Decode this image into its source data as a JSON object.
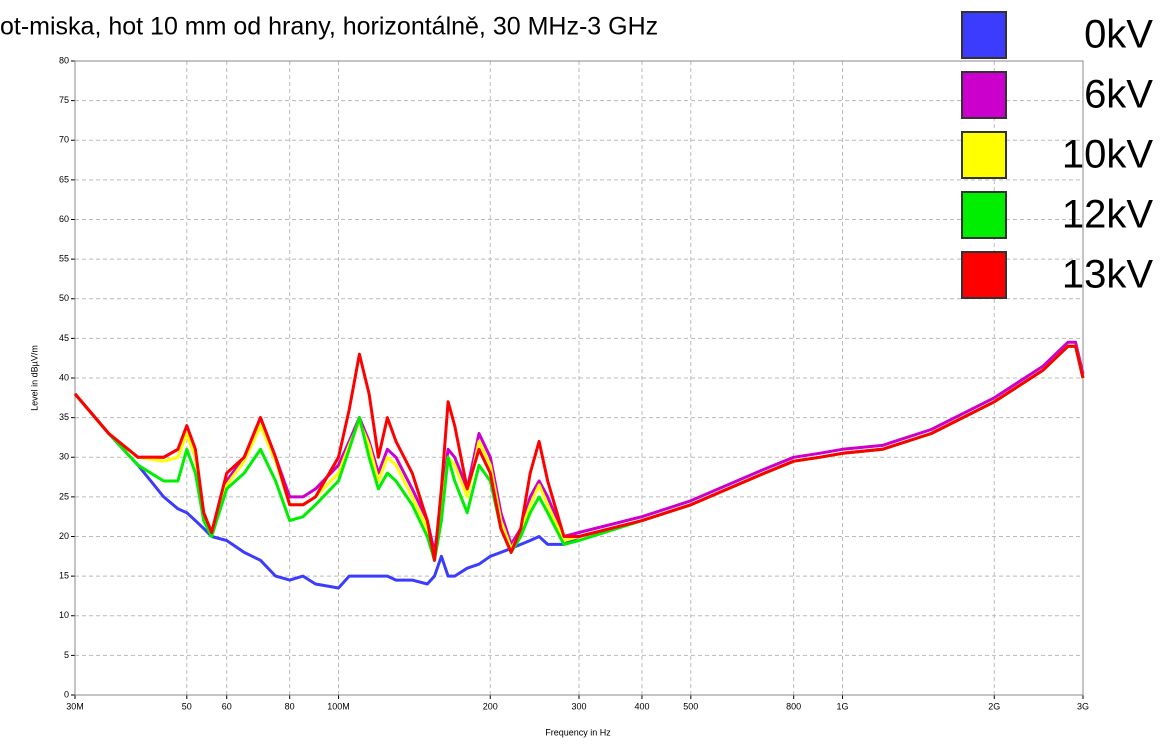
{
  "chart_data": {
    "type": "line",
    "title": "ot-miska, hot 10 mm od hrany, horizontálně, 30 MHz-3 GHz",
    "x_label": "Frequency in Hz",
    "y_label": "Level in dBµV/m",
    "x_scale": "log",
    "grid": true,
    "legend": "top-right",
    "xlim": [
      30000000,
      3000000000
    ],
    "ylim": [
      0,
      80
    ],
    "yticks": [
      0,
      5,
      10,
      15,
      20,
      25,
      30,
      35,
      40,
      45,
      50,
      55,
      60,
      65,
      70,
      75,
      80
    ],
    "xticks": [
      {
        "value": 30000000,
        "label": "30M"
      },
      {
        "value": 50000000,
        "label": "50"
      },
      {
        "value": 60000000,
        "label": "60"
      },
      {
        "value": 80000000,
        "label": "80"
      },
      {
        "value": 100000000,
        "label": "100M"
      },
      {
        "value": 200000000,
        "label": "200"
      },
      {
        "value": 300000000,
        "label": "300"
      },
      {
        "value": 400000000,
        "label": "400"
      },
      {
        "value": 500000000,
        "label": "500"
      },
      {
        "value": 800000000,
        "label": "800"
      },
      {
        "value": 1000000000,
        "label": "1G"
      },
      {
        "value": 2000000000,
        "label": "2G"
      },
      {
        "value": 3000000000,
        "label": "3G"
      }
    ],
    "x": [
      30000000,
      35000000,
      40000000,
      45000000,
      48000000,
      50000000,
      52000000,
      54000000,
      56000000,
      60000000,
      65000000,
      70000000,
      75000000,
      80000000,
      85000000,
      90000000,
      100000000,
      105000000,
      110000000,
      115000000,
      120000000,
      125000000,
      130000000,
      140000000,
      150000000,
      155000000,
      160000000,
      165000000,
      170000000,
      180000000,
      190000000,
      200000000,
      210000000,
      220000000,
      230000000,
      240000000,
      250000000,
      260000000,
      280000000,
      300000000,
      400000000,
      500000000,
      700000000,
      800000000,
      900000000,
      1000000000,
      1200000000,
      1500000000,
      2000000000,
      2500000000,
      2800000000,
      2900000000,
      3000000000
    ],
    "series": [
      {
        "name": "0kV",
        "color": "#3c3cff",
        "values": [
          38,
          33,
          29,
          25,
          23.5,
          23,
          22,
          21,
          20,
          19.5,
          18,
          17,
          15,
          14.5,
          15,
          14,
          13.5,
          15,
          15,
          15,
          15,
          15,
          14.5,
          14.5,
          14,
          15,
          17.5,
          15,
          15,
          16,
          16.5,
          17.5,
          18,
          18.5,
          19,
          19.5,
          20,
          19,
          19,
          20,
          22,
          24,
          28,
          29.5,
          30,
          30.5,
          31,
          33,
          37,
          41,
          44,
          44,
          40
        ]
      },
      {
        "name": "6kV",
        "color": "#cc00cc",
        "values": [
          38,
          33,
          30,
          30,
          31,
          33,
          30,
          23,
          20.5,
          27,
          30,
          35,
          30,
          25,
          25,
          26,
          29,
          32,
          35,
          32,
          28,
          31,
          30,
          26,
          22,
          18,
          24,
          31,
          30,
          26,
          33,
          30,
          23,
          19,
          21,
          25,
          27,
          25,
          20,
          20.5,
          22.5,
          24.5,
          28.5,
          30,
          30.5,
          31,
          31.5,
          33.5,
          37.5,
          41.5,
          44.5,
          44.5,
          40.5
        ]
      },
      {
        "name": "10kV",
        "color": "#ffff00",
        "values": [
          38,
          33,
          30,
          29.5,
          30,
          33,
          30,
          23,
          20.5,
          26.5,
          29.5,
          34,
          29.5,
          24,
          24,
          25,
          28,
          31.5,
          34.5,
          31.5,
          27,
          30,
          29,
          25,
          21,
          17.5,
          23,
          30,
          29,
          25,
          32,
          29,
          22,
          18.5,
          20.5,
          24,
          26.5,
          24,
          19.5,
          20,
          22,
          24,
          28,
          29.5,
          30,
          30.5,
          31,
          33,
          37,
          41,
          44,
          44,
          40
        ]
      },
      {
        "name": "12kV",
        "color": "#00ee00",
        "values": [
          38,
          33,
          29,
          27,
          27,
          31,
          28,
          22,
          20,
          26,
          28,
          31,
          27,
          22,
          22.5,
          24,
          27,
          31,
          35,
          30,
          26,
          28,
          27,
          24,
          20,
          17,
          22,
          30,
          27,
          23,
          29,
          27,
          21,
          18,
          20,
          23,
          25,
          23,
          19,
          19.5,
          22,
          24,
          28,
          29.5,
          30,
          30.5,
          31,
          33,
          37,
          41,
          44,
          44,
          40
        ]
      },
      {
        "name": "13kV",
        "color": "#ff0000",
        "values": [
          38,
          33,
          30,
          30,
          31,
          34,
          31,
          23,
          20.5,
          28,
          30,
          35,
          30,
          24,
          24,
          25,
          30,
          36,
          43,
          38,
          30,
          35,
          32,
          28,
          22,
          17,
          26,
          37,
          34,
          26,
          31,
          28,
          21,
          18,
          21,
          28,
          32,
          27,
          20,
          20,
          22,
          24,
          28,
          29.5,
          30,
          30.5,
          31,
          33,
          37,
          41,
          44,
          44,
          40
        ]
      }
    ]
  }
}
